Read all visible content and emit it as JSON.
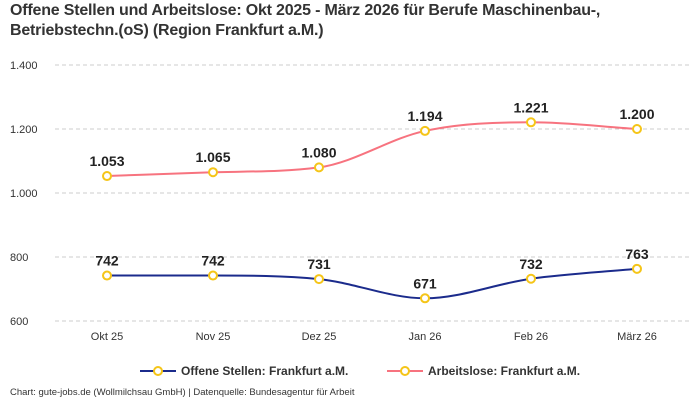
{
  "chart_data": {
    "type": "line",
    "title": "Offene Stellen und Arbeitslose: Okt 2025 - März 2026 für Berufe Maschinenbau-, Betriebstechn.(oS) (Region Frankfurt a.M.)",
    "categories": [
      "Okt 25",
      "Nov 25",
      "Dez 25",
      "Jan 26",
      "Feb 26",
      "März 26"
    ],
    "series": [
      {
        "name": "Offene Stellen: Frankfurt a.M.",
        "values": [
          742,
          742,
          731,
          671,
          732,
          763
        ],
        "labels": [
          "742",
          "742",
          "731",
          "671",
          "732",
          "763"
        ],
        "color": "#1b2b8c"
      },
      {
        "name": "Arbeitslose: Frankfurt a.M.",
        "values": [
          1053,
          1065,
          1080,
          1194,
          1221,
          1200
        ],
        "labels": [
          "1.053",
          "1.065",
          "1.080",
          "1.194",
          "1.221",
          "1.200"
        ],
        "color": "#f7737f"
      }
    ],
    "marker_color": "#f5c518",
    "ylim": [
      600,
      1400
    ],
    "yticks": [
      600,
      800,
      1000,
      1200,
      1400
    ],
    "ytick_labels": [
      "600",
      "800",
      "1.000",
      "1.200",
      "1.400"
    ],
    "grid": true,
    "legend_position": "bottom",
    "xlabel": "",
    "ylabel": ""
  },
  "credit": "Chart: gute-jobs.de (Wollmilchsau GmbH) | Datenquelle: Bundesagentur für Arbeit"
}
